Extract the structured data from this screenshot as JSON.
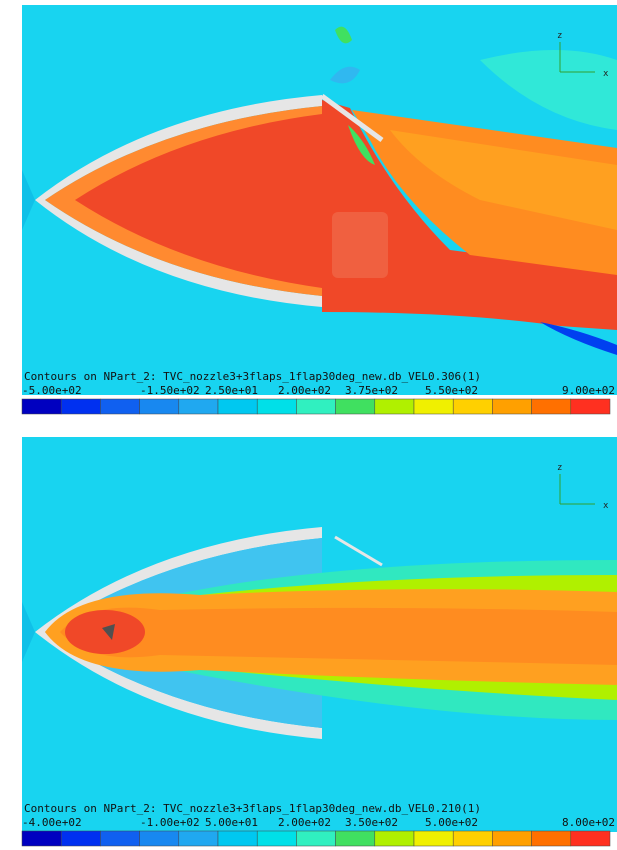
{
  "panels": [
    {
      "caption": "Contours on NPart_2: TVC_nozzle3+3flaps_1flap30deg_new.db_VEL0.306(1)",
      "axes": {
        "vertical": "z",
        "horizontal": "x"
      },
      "colorbar": {
        "labels": [
          "-5.00e+02",
          "-1.50e+02",
          "2.50e+01",
          "2.00e+02",
          "3.75e+02",
          "5.50e+02",
          "9.00e+02"
        ],
        "colors": [
          "#0000c0",
          "#0030f0",
          "#1060f0",
          "#1888f0",
          "#20a8f0",
          "#00c8f0",
          "#00e0e8",
          "#30f0c0",
          "#40e060",
          "#b0f000",
          "#f0f000",
          "#ffd000",
          "#ffa000",
          "#ff7000",
          "#ff3020"
        ]
      }
    },
    {
      "caption": "Contours on NPart_2: TVC_nozzle3+3flaps_1flap30deg_new.db_VEL0.210(1)",
      "axes": {
        "vertical": "z",
        "horizontal": "x"
      },
      "colorbar": {
        "labels": [
          "-4.00e+02",
          "-1.00e+02",
          "5.00e+01",
          "2.00e+02",
          "3.50e+02",
          "5.00e+02",
          "8.00e+02"
        ],
        "colors": [
          "#0000c0",
          "#0030f0",
          "#1060f0",
          "#1888f0",
          "#20a8f0",
          "#00c8f0",
          "#00e0e8",
          "#30f0c0",
          "#40e060",
          "#b0f000",
          "#f0f000",
          "#ffd000",
          "#ffa000",
          "#ff7000",
          "#ff3020"
        ]
      }
    }
  ]
}
